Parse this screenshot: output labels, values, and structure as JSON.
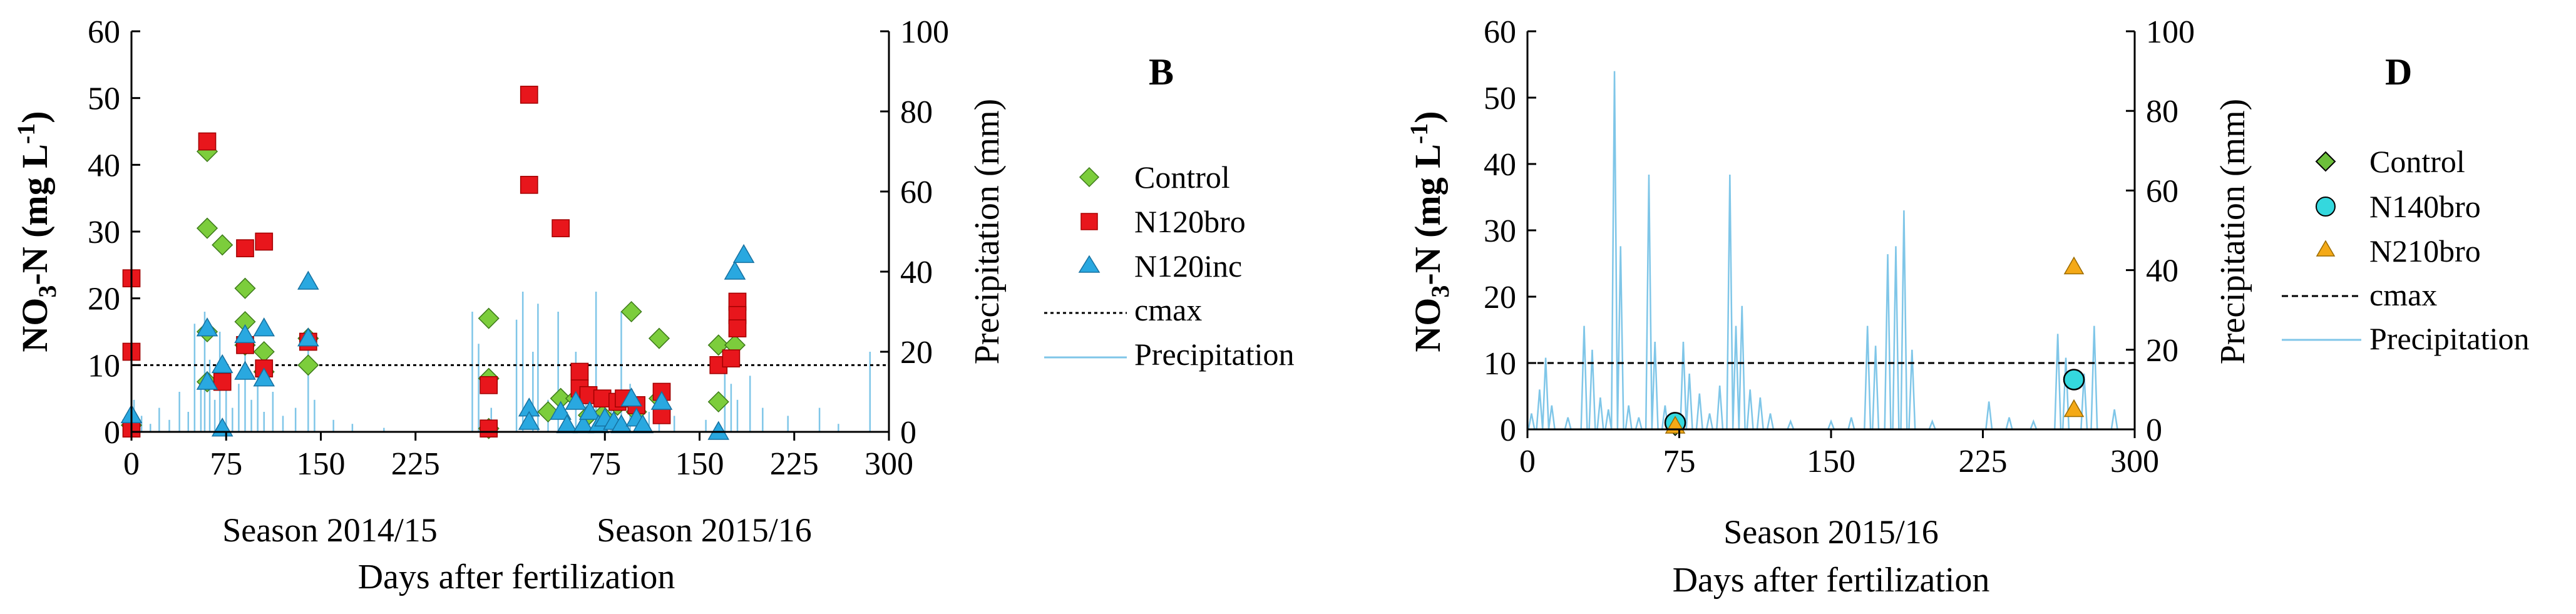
{
  "chart_data": [
    {
      "type": "scatter",
      "panel": "B",
      "y_title": "NO3-N (mg L-1)",
      "y2_title": "Precipitation (mm)",
      "x_title": "Days after fertilization",
      "ylim": [
        0,
        60
      ],
      "y_ticks": [
        0,
        10,
        20,
        30,
        40,
        50,
        60
      ],
      "y2lim": [
        0,
        100
      ],
      "y2_ticks": [
        0,
        20,
        40,
        60,
        80,
        100
      ],
      "x_tick_labels": [
        "0",
        "75",
        "150",
        "225",
        "75",
        "150",
        "225",
        "300"
      ],
      "seasons": [
        {
          "label": "Season 2014/15",
          "xlim": [
            0,
            300
          ]
        },
        {
          "label": "Season 2015/16",
          "xlim": [
            0,
            300
          ]
        }
      ],
      "cmax": 10,
      "legend": [
        "Control",
        "N120bro",
        "N120inc",
        "cmax",
        "Precipitation"
      ],
      "colors": {
        "Control": "#7ccd3c",
        "N120bro": "#e8161c",
        "N120inc": "#29a8e0",
        "precip": "#7fc6e8",
        "cmax": "#000000"
      },
      "series": [
        {
          "name": "Control",
          "marker": "diamond",
          "points": [
            [
              0,
              1
            ],
            [
              60,
              42
            ],
            [
              60,
              30.5
            ],
            [
              60,
              15
            ],
            [
              60,
              7.5
            ],
            [
              72,
              28
            ],
            [
              90,
              21.5
            ],
            [
              90,
              16.5
            ],
            [
              90,
              13
            ],
            [
              105,
              12
            ],
            [
              105,
              9
            ],
            [
              140,
              14
            ],
            [
              140,
              10
            ],
            [
              283,
              17
            ],
            [
              283,
              8
            ],
            [
              283,
              0.5
            ],
            [
              330,
              3
            ],
            [
              340,
              5
            ],
            [
              352,
              5
            ],
            [
              362,
              2.5
            ],
            [
              373,
              2.5
            ],
            [
              385,
              4
            ],
            [
              396,
              18
            ],
            [
              400,
              3
            ],
            [
              418,
              14
            ],
            [
              418,
              5
            ],
            [
              465,
              13
            ],
            [
              465,
              4.5
            ],
            [
              478,
              13
            ]
          ]
        },
        {
          "name": "N120bro",
          "marker": "square",
          "points": [
            [
              0,
              23
            ],
            [
              0,
              12
            ],
            [
              0,
              0.5
            ],
            [
              60,
              43.5
            ],
            [
              72,
              7.5
            ],
            [
              90,
              27.5
            ],
            [
              90,
              13
            ],
            [
              105,
              28.5
            ],
            [
              105,
              9.5
            ],
            [
              140,
              13.5
            ],
            [
              283,
              7
            ],
            [
              283,
              0.5
            ],
            [
              315,
              50.5
            ],
            [
              315,
              37
            ],
            [
              340,
              30.5
            ],
            [
              355,
              9
            ],
            [
              355,
              6.5
            ],
            [
              362,
              5.5
            ],
            [
              373,
              5
            ],
            [
              385,
              4.5
            ],
            [
              390,
              5
            ],
            [
              400,
              4
            ],
            [
              420,
              6
            ],
            [
              420,
              2.5
            ],
            [
              465,
              10
            ],
            [
              475,
              11
            ],
            [
              480,
              19.5
            ],
            [
              480,
              17.5
            ],
            [
              480,
              15.5
            ]
          ]
        },
        {
          "name": "N120inc",
          "marker": "triangle",
          "points": [
            [
              0,
              2.5
            ],
            [
              60,
              15.5
            ],
            [
              60,
              7.5
            ],
            [
              72,
              10
            ],
            [
              72,
              0.5
            ],
            [
              90,
              14.5
            ],
            [
              90,
              9
            ],
            [
              105,
              15.5
            ],
            [
              105,
              8
            ],
            [
              140,
              22.5
            ],
            [
              140,
              14
            ],
            [
              315,
              3.5
            ],
            [
              315,
              1.5
            ],
            [
              340,
              3
            ],
            [
              345,
              1
            ],
            [
              352,
              4.5
            ],
            [
              358,
              1
            ],
            [
              363,
              3
            ],
            [
              370,
              1
            ],
            [
              375,
              2
            ],
            [
              382,
              1.5
            ],
            [
              388,
              1
            ],
            [
              396,
              5
            ],
            [
              400,
              2
            ],
            [
              405,
              1
            ],
            [
              420,
              4.5
            ],
            [
              465,
              0
            ],
            [
              478,
              24
            ],
            [
              485,
              26.5
            ]
          ]
        }
      ],
      "precipitation": [
        [
          2,
          8
        ],
        [
          8,
          4
        ],
        [
          15,
          2
        ],
        [
          22,
          6
        ],
        [
          30,
          3
        ],
        [
          38,
          10
        ],
        [
          45,
          5
        ],
        [
          50,
          27
        ],
        [
          55,
          12
        ],
        [
          58,
          30
        ],
        [
          62,
          18
        ],
        [
          66,
          8
        ],
        [
          70,
          25
        ],
        [
          75,
          15
        ],
        [
          80,
          6
        ],
        [
          85,
          12
        ],
        [
          90,
          20
        ],
        [
          95,
          8
        ],
        [
          100,
          14
        ],
        [
          105,
          5
        ],
        [
          112,
          10
        ],
        [
          120,
          4
        ],
        [
          130,
          6
        ],
        [
          140,
          25
        ],
        [
          145,
          8
        ],
        [
          160,
          3
        ],
        [
          175,
          2
        ],
        [
          200,
          1
        ],
        [
          270,
          30
        ],
        [
          275,
          22
        ],
        [
          285,
          6
        ],
        [
          305,
          28
        ],
        [
          310,
          35
        ],
        [
          318,
          20
        ],
        [
          322,
          32
        ],
        [
          330,
          8
        ],
        [
          338,
          30
        ],
        [
          345,
          5
        ],
        [
          352,
          20
        ],
        [
          360,
          8
        ],
        [
          368,
          35
        ],
        [
          375,
          10
        ],
        [
          380,
          6
        ],
        [
          388,
          30
        ],
        [
          395,
          12
        ],
        [
          402,
          8
        ],
        [
          410,
          5
        ],
        [
          418,
          10
        ],
        [
          430,
          4
        ],
        [
          455,
          3
        ],
        [
          470,
          18
        ],
        [
          475,
          12
        ],
        [
          480,
          8
        ],
        [
          490,
          14
        ],
        [
          500,
          6
        ],
        [
          520,
          4
        ],
        [
          545,
          6
        ],
        [
          560,
          2
        ],
        [
          585,
          20
        ],
        [
          600,
          8
        ]
      ]
    },
    {
      "type": "scatter",
      "panel": "D",
      "y_title": "NO3-N (mg L-1)",
      "y2_title": "Precipitation (mm)",
      "x_title": "Days after fertilization",
      "xlabel_season": "Season 2015/16",
      "xlim": [
        0,
        300
      ],
      "x_ticks": [
        0,
        75,
        150,
        225,
        300
      ],
      "ylim": [
        0,
        60
      ],
      "y_ticks": [
        0,
        10,
        20,
        30,
        40,
        50,
        60
      ],
      "y2lim": [
        0,
        100
      ],
      "y2_ticks": [
        0,
        20,
        40,
        60,
        80,
        100
      ],
      "cmax": 10,
      "legend": [
        "Control",
        "N140bro",
        "N210bro",
        "cmax",
        "Precipitation"
      ],
      "colors": {
        "Control": "#6cbf3a",
        "N140bro": "#34d8de",
        "N210bro": "#f4a917",
        "precip": "#7fc6e8",
        "cmax": "#000000"
      },
      "series": [
        {
          "name": "Control",
          "marker": "diamond",
          "points": [
            [
              73,
              0.5
            ]
          ]
        },
        {
          "name": "N140bro",
          "marker": "circle",
          "points": [
            [
              73,
              1
            ],
            [
              270,
              7.5
            ]
          ]
        },
        {
          "name": "N210bro",
          "marker": "triangle",
          "points": [
            [
              73,
              0.5
            ],
            [
              270,
              24.5
            ],
            [
              270,
              3
            ]
          ]
        }
      ],
      "precipitation": [
        [
          2,
          4
        ],
        [
          6,
          10
        ],
        [
          9,
          18
        ],
        [
          12,
          6
        ],
        [
          20,
          3
        ],
        [
          28,
          26
        ],
        [
          32,
          20
        ],
        [
          36,
          8
        ],
        [
          40,
          5
        ],
        [
          43,
          90
        ],
        [
          46,
          46
        ],
        [
          50,
          6
        ],
        [
          55,
          3
        ],
        [
          60,
          64
        ],
        [
          63,
          22
        ],
        [
          68,
          6
        ],
        [
          72,
          3
        ],
        [
          77,
          22
        ],
        [
          80,
          14
        ],
        [
          85,
          9
        ],
        [
          90,
          4
        ],
        [
          95,
          11
        ],
        [
          100,
          64
        ],
        [
          103,
          26
        ],
        [
          106,
          31
        ],
        [
          110,
          10
        ],
        [
          115,
          8
        ],
        [
          120,
          4
        ],
        [
          130,
          2
        ],
        [
          150,
          2
        ],
        [
          160,
          3
        ],
        [
          168,
          26
        ],
        [
          172,
          21
        ],
        [
          178,
          44
        ],
        [
          182,
          46
        ],
        [
          186,
          55
        ],
        [
          190,
          20
        ],
        [
          200,
          2
        ],
        [
          228,
          7
        ],
        [
          238,
          3
        ],
        [
          250,
          2
        ],
        [
          262,
          24
        ],
        [
          266,
          18
        ],
        [
          275,
          14
        ],
        [
          280,
          26
        ],
        [
          290,
          5
        ]
      ]
    }
  ]
}
